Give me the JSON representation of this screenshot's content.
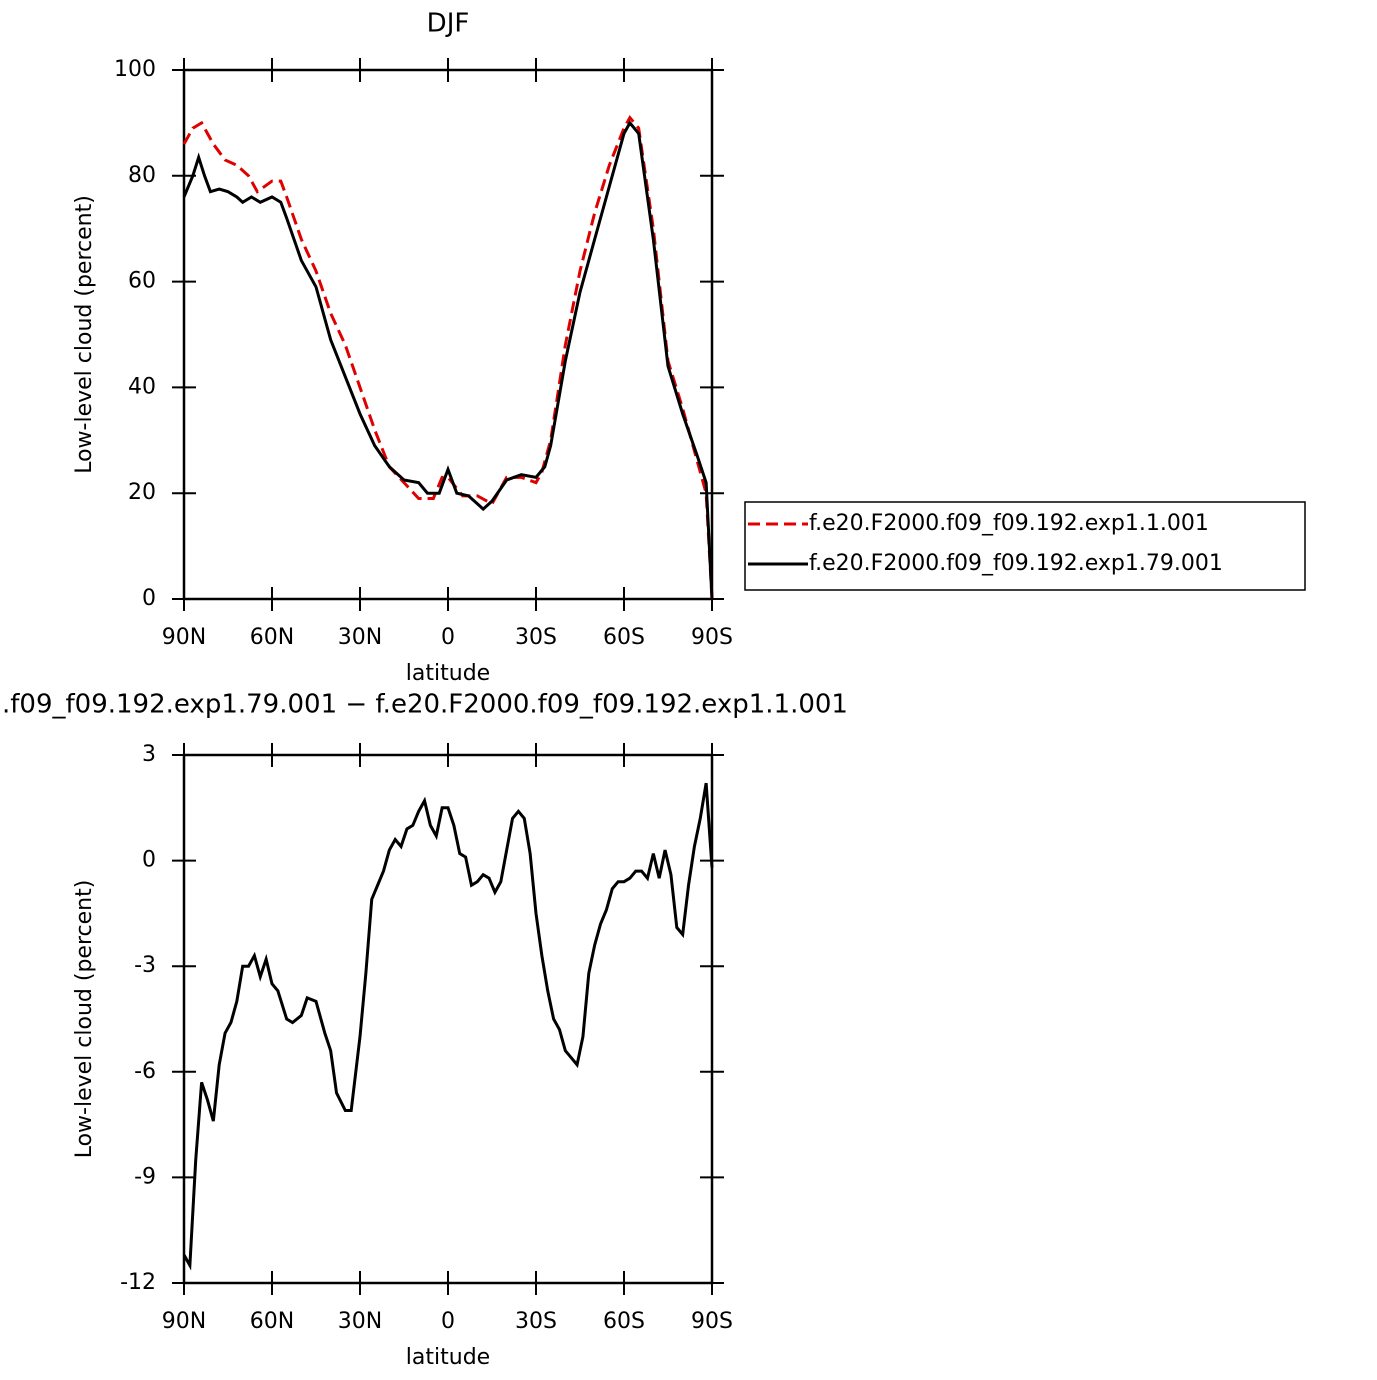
{
  "chart_data": [
    {
      "type": "line",
      "title": "DJF",
      "xlabel": "latitude",
      "ylabel": "Low-level cloud (percent)",
      "xlim": [
        90,
        -90
      ],
      "ylim": [
        0,
        100
      ],
      "xticks": [
        {
          "value": 90,
          "label": "90N"
        },
        {
          "value": 60,
          "label": "60N"
        },
        {
          "value": 30,
          "label": "30N"
        },
        0,
        {
          "value": -30,
          "label": "30S"
        },
        {
          "value": -60,
          "label": "60S"
        },
        {
          "value": -90,
          "label": "90S"
        }
      ],
      "yticks": [
        0,
        20,
        40,
        60,
        80,
        100
      ],
      "legend": "right",
      "series": [
        {
          "name": "f.e20.F2000.f09_f09.192.exp1.1.001",
          "color": "#e00000",
          "linestyle": "dashed",
          "x": [
            90,
            87,
            84,
            80,
            76,
            72,
            68,
            65,
            60,
            57,
            55,
            50,
            45,
            40,
            35,
            30,
            25,
            20,
            15,
            10,
            5,
            2,
            0,
            -5,
            -10,
            -15,
            -20,
            -25,
            -30,
            -32,
            -35,
            -40,
            -45,
            -50,
            -55,
            -60,
            -62,
            -65,
            -70,
            -75,
            -80,
            -85,
            -87,
            -88,
            -90
          ],
          "values": [
            86,
            89,
            90,
            86,
            83,
            82,
            80,
            77,
            79,
            79,
            76,
            68,
            62,
            54,
            48,
            40,
            32,
            25,
            22,
            19,
            19,
            23,
            23,
            19.5,
            19.5,
            18,
            23,
            23,
            22,
            24,
            30,
            48,
            62,
            73,
            82,
            89,
            91,
            89,
            70,
            45,
            36,
            26,
            22,
            20,
            0
          ]
        },
        {
          "name": "f.e20.F2000.f09_f09.192.exp1.79.001",
          "color": "#000000",
          "linestyle": "solid",
          "x": [
            90,
            87,
            85,
            83,
            81,
            78,
            75,
            72,
            70,
            67,
            64,
            60,
            57,
            55,
            50,
            45,
            40,
            35,
            30,
            25,
            20,
            15,
            10,
            7,
            3,
            0,
            -3,
            -7,
            -10,
            -12,
            -15,
            -20,
            -25,
            -30,
            -33,
            -35,
            -40,
            -45,
            -50,
            -55,
            -60,
            -62,
            -65,
            -70,
            -75,
            -80,
            -85,
            -88,
            -90
          ],
          "values": [
            76,
            80,
            83.5,
            80,
            77,
            77.5,
            77,
            76,
            75,
            76,
            75,
            76,
            75,
            72,
            64,
            59,
            49,
            42,
            35,
            29,
            25,
            22.5,
            22,
            20,
            20,
            24.5,
            20,
            19.5,
            18,
            17,
            18.5,
            22.5,
            23.5,
            23,
            25,
            29,
            45,
            58,
            68,
            78,
            88,
            90,
            88,
            68,
            44,
            35,
            27,
            22,
            0
          ]
        }
      ]
    },
    {
      "type": "line",
      "title": ".f09_f09.192.exp1.79.001 − f.e20.F2000.f09_f09.192.exp1.1.001",
      "xlabel": "latitude",
      "ylabel": "Low-level cloud (percent)",
      "xlim": [
        90,
        -90
      ],
      "ylim": [
        -12,
        3
      ],
      "xticks": [
        {
          "value": 90,
          "label": "90N"
        },
        {
          "value": 60,
          "label": "60N"
        },
        {
          "value": 30,
          "label": "30N"
        },
        0,
        {
          "value": -30,
          "label": "30S"
        },
        {
          "value": -60,
          "label": "60S"
        },
        {
          "value": -90,
          "label": "90S"
        }
      ],
      "yticks": [
        -12,
        -9,
        -6,
        -3,
        0,
        3
      ],
      "series": [
        {
          "color": "#000000",
          "linestyle": "solid",
          "x": [
            90,
            88,
            86,
            84,
            82,
            80,
            78,
            76,
            74,
            72,
            70,
            68,
            66,
            64,
            62,
            60,
            58,
            55,
            53,
            50,
            48,
            45,
            42,
            40,
            38,
            35,
            33,
            30,
            28,
            26,
            24,
            22,
            20,
            18,
            16,
            14,
            12,
            10,
            8,
            6,
            4,
            2,
            0,
            -2,
            -4,
            -6,
            -8,
            -10,
            -12,
            -14,
            -16,
            -18,
            -20,
            -22,
            -24,
            -26,
            -28,
            -30,
            -32,
            -34,
            -36,
            -38,
            -40,
            -42,
            -44,
            -46,
            -48,
            -50,
            -52,
            -54,
            -56,
            -58,
            -60,
            -62,
            -64,
            -66,
            -68,
            -70,
            -72,
            -74,
            -76,
            -78,
            -80,
            -82,
            -84,
            -86,
            -88,
            -90
          ],
          "values": [
            -11.2,
            -11.5,
            -8.5,
            -6.3,
            -6.8,
            -7.4,
            -5.8,
            -4.9,
            -4.6,
            -4.0,
            -3.0,
            -3.0,
            -2.7,
            -3.3,
            -2.8,
            -3.5,
            -3.7,
            -4.5,
            -4.6,
            -4.4,
            -3.9,
            -4.0,
            -4.9,
            -5.4,
            -6.6,
            -7.1,
            -7.1,
            -5.0,
            -3.2,
            -1.1,
            -0.7,
            -0.3,
            0.3,
            0.6,
            0.4,
            0.9,
            1.0,
            1.4,
            1.7,
            1.0,
            0.7,
            1.5,
            1.5,
            1.0,
            0.2,
            0.1,
            -0.7,
            -0.6,
            -0.4,
            -0.5,
            -0.9,
            -0.6,
            0.3,
            1.2,
            1.4,
            1.2,
            0.2,
            -1.5,
            -2.7,
            -3.7,
            -4.5,
            -4.8,
            -5.4,
            -5.6,
            -5.8,
            -5.0,
            -3.2,
            -2.4,
            -1.8,
            -1.4,
            -0.8,
            -0.6,
            -0.6,
            -0.5,
            -0.3,
            -0.3,
            -0.5,
            0.2,
            -0.5,
            0.3,
            -0.4,
            -1.9,
            -2.1,
            -0.7,
            0.4,
            1.2,
            2.2,
            -0.2
          ]
        }
      ]
    }
  ]
}
